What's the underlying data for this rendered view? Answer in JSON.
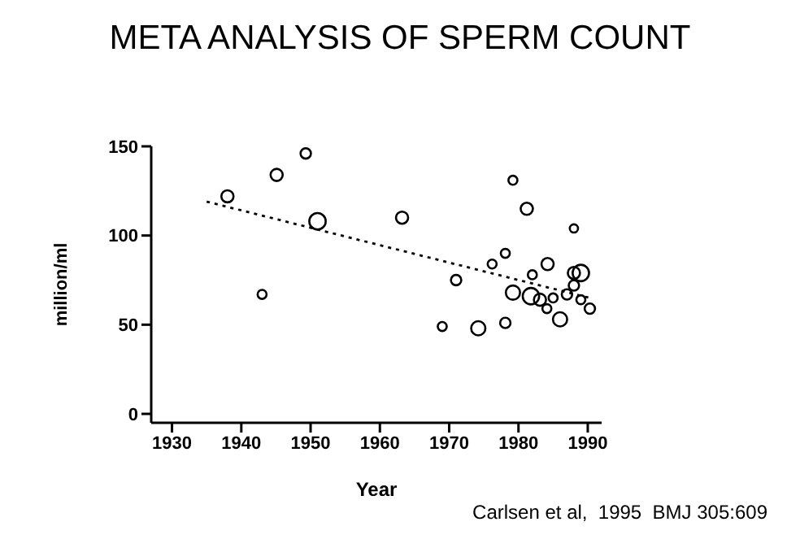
{
  "chart_data": {
    "type": "bubble",
    "title": "META ANALYSIS OF SPERM COUNT",
    "xlabel": "Year",
    "ylabel": "million/ml",
    "annotations": [
      "Carlsen et al,  1995  BMJ 305:609"
    ],
    "xlim": [
      1927,
      1992
    ],
    "xticks": [
      1930,
      1940,
      1950,
      1960,
      1970,
      1980,
      1990
    ],
    "ylim": [
      -5,
      150
    ],
    "yticks": [
      0,
      50,
      100,
      150
    ],
    "grid": false,
    "series": [
      {
        "color": "#000000",
        "marker": "circle",
        "x": [
          1938,
          1943,
          1945.1,
          1949.3,
          1951,
          1963.2,
          1969,
          1971,
          1974.2,
          1976.2,
          1978.1,
          1978.1,
          1979.2,
          1979.2,
          1981.2,
          1982,
          1981.8,
          1983.1,
          1984.1,
          1984.2,
          1985,
          1986,
          1987,
          1988,
          1988,
          1988,
          1989,
          1989,
          1990.3
        ],
        "values": [
          122,
          67,
          134,
          146,
          108,
          110,
          49,
          75,
          48,
          84,
          90,
          51,
          131,
          68,
          115,
          78,
          66,
          64,
          59,
          84,
          65,
          53,
          67,
          104,
          79,
          72,
          79,
          64,
          59
        ],
        "sizes": [
          0.55,
          0.3,
          0.55,
          0.4,
          1,
          0.55,
          0.3,
          0.4,
          0.75,
          0.3,
          0.3,
          0.4,
          0.3,
          0.75,
          0.55,
          0.3,
          1,
          0.55,
          0.3,
          0.55,
          0.3,
          0.75,
          0.4,
          0.25,
          0.55,
          0.4,
          1,
          0.3,
          0.4
        ]
      },
      {
        "type": "line",
        "color": "#000000",
        "line_style": "dotted",
        "x": [
          1935,
          1990.3
        ],
        "values": [
          119,
          65
        ]
      }
    ]
  }
}
